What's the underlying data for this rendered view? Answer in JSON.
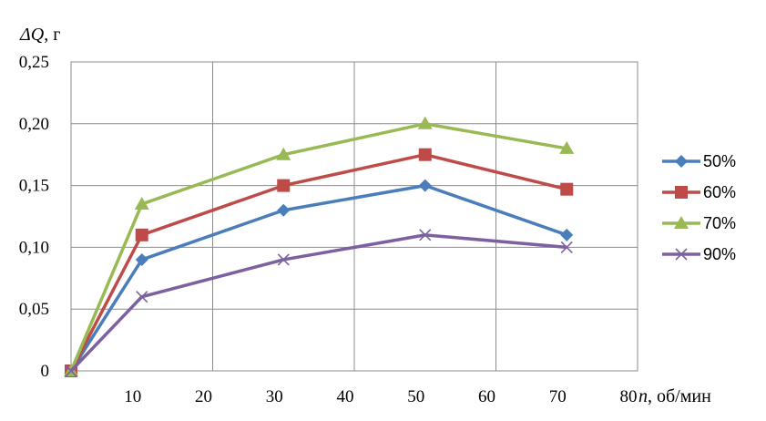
{
  "chart_data": {
    "type": "line",
    "ylabel_symbol": "ΔQ",
    "ylabel_unit": ", г",
    "xlabel_symbol": "n",
    "xlabel_unit": ", об/мин",
    "xlim": [
      0,
      80
    ],
    "ylim": [
      0,
      0.25
    ],
    "x_ticks": [
      {
        "value": 10,
        "label": "10"
      },
      {
        "value": 20,
        "label": "20"
      },
      {
        "value": 30,
        "label": "30"
      },
      {
        "value": 40,
        "label": "40"
      },
      {
        "value": 50,
        "label": "50"
      },
      {
        "value": 60,
        "label": "60"
      },
      {
        "value": 70,
        "label": "70"
      },
      {
        "value": 80,
        "label": "80"
      }
    ],
    "y_ticks": [
      {
        "value": 0,
        "label": "0"
      },
      {
        "value": 0.05,
        "label": "0,05"
      },
      {
        "value": 0.1,
        "label": "0,10"
      },
      {
        "value": 0.15,
        "label": "0,15"
      },
      {
        "value": 0.2,
        "label": "0,20"
      },
      {
        "value": 0.25,
        "label": "0,25"
      }
    ],
    "grid": true,
    "legend_position": "right",
    "x": [
      0,
      10,
      30,
      50,
      70
    ],
    "series": [
      {
        "name": "50%",
        "marker": "diamond",
        "color": "#4A7EBB",
        "values": [
          0,
          0.09,
          0.13,
          0.15,
          0.11
        ]
      },
      {
        "name": "60%",
        "marker": "square",
        "color": "#BE4B48",
        "values": [
          0,
          0.11,
          0.15,
          0.175,
          0.147
        ]
      },
      {
        "name": "70%",
        "marker": "triangle",
        "color": "#98B954",
        "values": [
          0,
          0.135,
          0.175,
          0.2,
          0.18
        ]
      },
      {
        "name": "90%",
        "marker": "x",
        "color": "#7D60A0",
        "values": [
          0,
          0.06,
          0.09,
          0.11,
          0.1
        ]
      }
    ]
  }
}
